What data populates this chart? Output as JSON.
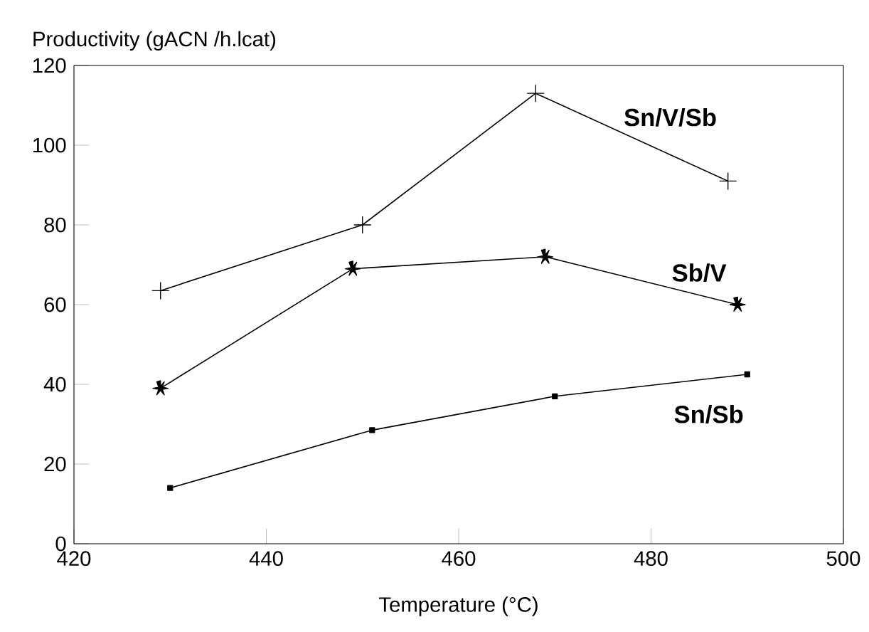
{
  "chart_data": {
    "type": "line",
    "xlabel": "Temperature (°C)",
    "ylabel": "Productivity (gACN /h.lcat)",
    "xlim": [
      420,
      500
    ],
    "xticks": [
      420,
      440,
      460,
      480,
      500
    ],
    "ylim": [
      0,
      120
    ],
    "yticks": [
      0,
      20,
      40,
      60,
      80,
      100,
      120
    ],
    "series": [
      {
        "name": "Sn/V/Sb",
        "color": "#000000",
        "marker": "cross",
        "x": [
          429,
          450,
          468,
          488
        ],
        "values": [
          63.5,
          80,
          113,
          91
        ]
      },
      {
        "name": "Sb/V",
        "color": "#000000",
        "marker": "star",
        "x": [
          429,
          449,
          469,
          489
        ],
        "values": [
          39,
          69,
          72,
          60
        ]
      },
      {
        "name": "Sn/Sb",
        "color": "#000000",
        "marker": "square",
        "x": [
          430,
          451,
          470,
          490
        ],
        "values": [
          14,
          28.5,
          37,
          42.5
        ]
      }
    ]
  }
}
